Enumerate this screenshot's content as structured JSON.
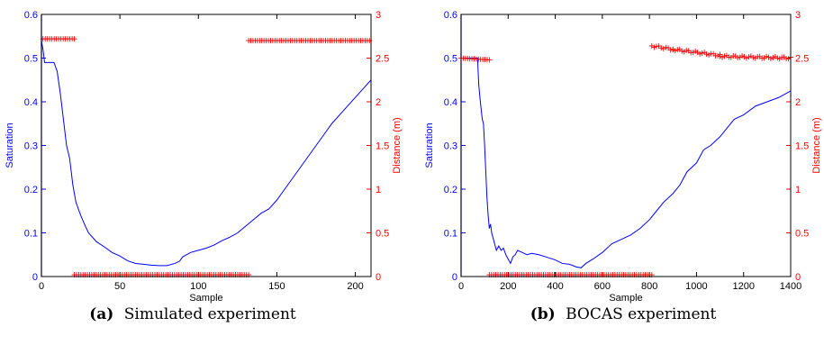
{
  "colors": {
    "saturation": "#0000ff",
    "distance": "#ff0000",
    "axis": "#000000"
  },
  "chart_data": [
    {
      "type": "line",
      "caption_tag": "(a)",
      "caption_text": "Simulated experiment",
      "xlabel": "Sample",
      "ylabel_left": "Saturation",
      "ylabel_right": "Distance (m)",
      "xlim": [
        0,
        210
      ],
      "ylim_left": [
        0,
        0.6
      ],
      "ylim_right": [
        0,
        3
      ],
      "x_ticks": [
        "0",
        "50",
        "100",
        "150",
        "200"
      ],
      "x_tick_values": [
        0,
        50,
        100,
        150,
        200
      ],
      "y_left_ticks": [
        "0",
        "0.1",
        "0.2",
        "0.3",
        "0.4",
        "0.5",
        "0.6"
      ],
      "y_right_ticks": [
        "0",
        "0.5",
        "1",
        "1.5",
        "2",
        "2.5",
        "3"
      ],
      "series": [
        {
          "axis": "left",
          "style": "line",
          "x": [
            0,
            1,
            2,
            5,
            8,
            10,
            12,
            14,
            16,
            18,
            20,
            22,
            25,
            28,
            30,
            35,
            40,
            45,
            50,
            55,
            60,
            65,
            70,
            75,
            80,
            85,
            88,
            90,
            95,
            100,
            105,
            110,
            115,
            120,
            125,
            130,
            135,
            140,
            145,
            150,
            155,
            160,
            165,
            170,
            175,
            180,
            185,
            190,
            195,
            200,
            205,
            210
          ],
          "y": [
            0.54,
            0.52,
            0.49,
            0.49,
            0.49,
            0.47,
            0.42,
            0.36,
            0.3,
            0.27,
            0.21,
            0.17,
            0.14,
            0.115,
            0.1,
            0.08,
            0.068,
            0.055,
            0.047,
            0.036,
            0.03,
            0.028,
            0.026,
            0.025,
            0.025,
            0.03,
            0.035,
            0.045,
            0.055,
            0.06,
            0.065,
            0.072,
            0.082,
            0.09,
            0.1,
            0.115,
            0.13,
            0.145,
            0.155,
            0.175,
            0.2,
            0.225,
            0.25,
            0.275,
            0.3,
            0.325,
            0.35,
            0.37,
            0.39,
            0.41,
            0.43,
            0.45
          ]
        },
        {
          "axis": "right",
          "style": "marker",
          "segments": [
            {
              "x_start": 1,
              "x_end": 21,
              "y": 2.72
            },
            {
              "x_start": 21,
              "x_end": 132,
              "y": 0.02
            },
            {
              "x_start": 132,
              "x_end": 209,
              "y": 2.7
            }
          ]
        }
      ]
    },
    {
      "type": "line",
      "caption_tag": "(b)",
      "caption_text": "BOCAS experiment",
      "xlabel": "Sample",
      "ylabel_left": "Saturation",
      "ylabel_right": "Distance (m)",
      "xlim": [
        0,
        1400
      ],
      "ylim_left": [
        0,
        0.6
      ],
      "ylim_right": [
        0,
        3
      ],
      "x_ticks": [
        "0",
        "200",
        "400",
        "600",
        "800",
        "1000",
        "1200",
        "1400"
      ],
      "x_tick_values": [
        0,
        200,
        400,
        600,
        800,
        1000,
        1200,
        1400
      ],
      "y_left_ticks": [
        "0",
        "0.1",
        "0.2",
        "0.3",
        "0.4",
        "0.5",
        "0.6"
      ],
      "y_right_ticks": [
        "0",
        "0.5",
        "1",
        "1.5",
        "2",
        "2.5",
        "3"
      ],
      "series": [
        {
          "axis": "left",
          "style": "line",
          "x": [
            0,
            30,
            60,
            70,
            75,
            80,
            90,
            95,
            100,
            105,
            110,
            115,
            120,
            125,
            130,
            140,
            150,
            160,
            170,
            180,
            190,
            200,
            210,
            220,
            230,
            240,
            260,
            280,
            300,
            330,
            360,
            400,
            430,
            460,
            490,
            510,
            530,
            560,
            600,
            640,
            680,
            720,
            760,
            800,
            830,
            860,
            900,
            930,
            960,
            1000,
            1030,
            1060,
            1100,
            1130,
            1160,
            1200,
            1250,
            1300,
            1350,
            1400
          ],
          "y": [
            0.5,
            0.5,
            0.5,
            0.5,
            0.44,
            0.41,
            0.36,
            0.35,
            0.3,
            0.24,
            0.18,
            0.14,
            0.11,
            0.12,
            0.1,
            0.08,
            0.06,
            0.07,
            0.06,
            0.065,
            0.05,
            0.04,
            0.03,
            0.045,
            0.05,
            0.06,
            0.055,
            0.05,
            0.053,
            0.05,
            0.045,
            0.038,
            0.03,
            0.028,
            0.022,
            0.02,
            0.03,
            0.04,
            0.055,
            0.075,
            0.085,
            0.095,
            0.11,
            0.13,
            0.15,
            0.17,
            0.19,
            0.21,
            0.24,
            0.26,
            0.29,
            0.3,
            0.32,
            0.34,
            0.36,
            0.37,
            0.39,
            0.4,
            0.41,
            0.425
          ]
        },
        {
          "axis": "right",
          "style": "marker",
          "segments": [
            {
              "x_start": 0,
              "x_end": 120,
              "y_start": 2.5,
              "y_end": 2.48
            },
            {
              "x_start": 120,
              "x_end": 810,
              "y_start": 0.02,
              "y_end": 0.02
            },
            {
              "x_start": 810,
              "x_end": 900,
              "y_start": 2.64,
              "y_end": 2.6
            },
            {
              "x_start": 900,
              "x_end": 1100,
              "y_start": 2.6,
              "y_end": 2.53
            },
            {
              "x_start": 1100,
              "x_end": 1400,
              "y_start": 2.52,
              "y_end": 2.5
            }
          ]
        }
      ]
    }
  ]
}
